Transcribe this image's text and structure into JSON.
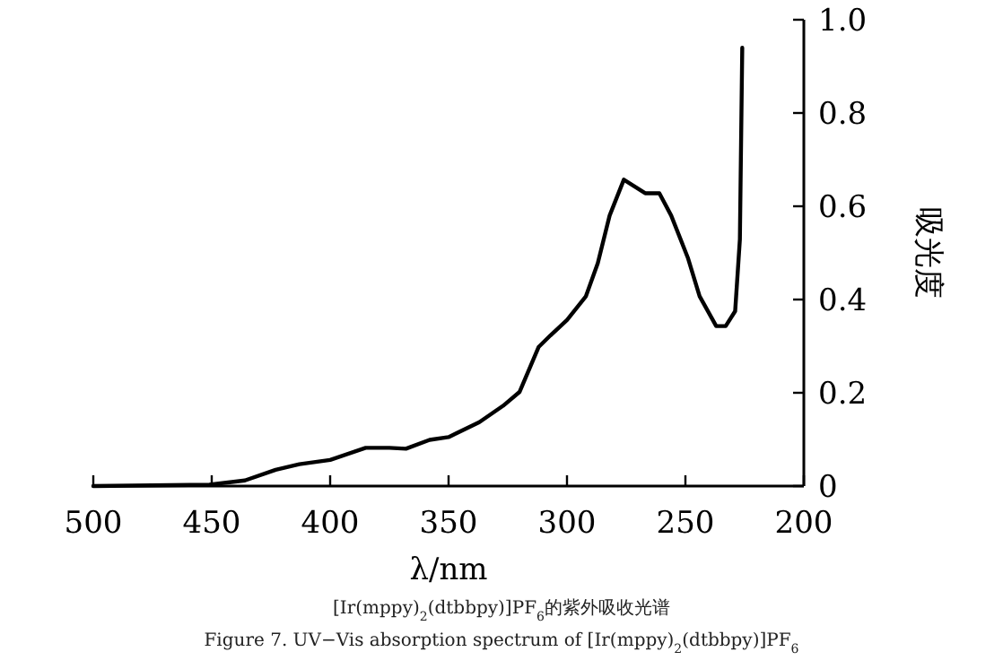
{
  "chart_data": {
    "type": "line",
    "xlabel": "λ/nm",
    "ylabel": "吸光度",
    "annotations": [
      "[Ir(mppy)$_{2}$(dtbbpy)]PF$_{6}$的紫外吸收光谱",
      "Figure 7. UV−Vis absorption spectrum of [Ir(mppy)$_{2}$(dtbbpy)]PF$_{6}$"
    ],
    "xlim": [
      500,
      200
    ],
    "ylim": [
      0,
      1
    ],
    "xticks": [
      500,
      450,
      400,
      350,
      300,
      250,
      200
    ],
    "yticks": [
      0,
      0.2,
      0.4,
      0.6,
      0.8,
      {
        "value": 1,
        "label": "1.0"
      }
    ],
    "x": [
      500,
      451,
      436,
      423,
      413,
      400,
      385,
      375,
      368,
      358,
      350,
      337,
      327,
      320,
      312,
      307,
      300,
      292,
      287,
      282,
      276,
      267,
      261,
      256,
      249,
      244,
      237,
      233,
      229,
      227,
      226
    ],
    "values": [
      0,
      0.003,
      0.012,
      0.035,
      0.047,
      0.056,
      0.082,
      0.082,
      0.08,
      0.099,
      0.105,
      0.137,
      0.172,
      0.202,
      0.298,
      0.323,
      0.356,
      0.407,
      0.478,
      0.58,
      0.657,
      0.628,
      0.628,
      0.58,
      0.49,
      0.407,
      0.343,
      0.343,
      0.375,
      0.529,
      0.94
    ],
    "color": "#000000"
  }
}
